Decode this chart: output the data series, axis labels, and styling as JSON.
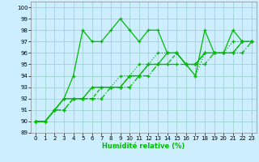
{
  "xlabel": "Humidité relative (%)",
  "background_color": "#cceeff",
  "grid_color": "#99cccc",
  "line_color": "#00bb00",
  "xlim": [
    -0.5,
    23.5
  ],
  "ylim": [
    89,
    100.5
  ],
  "yticks": [
    89,
    90,
    91,
    92,
    93,
    94,
    95,
    96,
    97,
    98,
    99,
    100
  ],
  "xticks": [
    0,
    1,
    2,
    3,
    4,
    5,
    6,
    7,
    8,
    9,
    10,
    11,
    12,
    13,
    14,
    15,
    16,
    17,
    18,
    19,
    20,
    21,
    22,
    23
  ],
  "series": [
    {
      "x": [
        0,
        1,
        2,
        3,
        4,
        5,
        6,
        7,
        8,
        9,
        10,
        11,
        12,
        13,
        14,
        15,
        16,
        17,
        18,
        19,
        20,
        21,
        22
      ],
      "y": [
        90,
        90,
        91,
        92,
        94,
        98,
        97,
        97,
        98,
        99,
        98,
        97,
        98,
        98,
        96,
        96,
        95,
        94,
        98,
        96,
        96,
        98,
        97
      ],
      "style": "-",
      "marker": "+"
    },
    {
      "x": [
        0,
        1,
        2,
        3,
        4,
        5,
        6,
        7,
        8,
        9,
        10,
        11,
        12,
        13,
        14,
        15,
        16,
        17,
        18,
        19,
        20,
        21,
        22,
        23
      ],
      "y": [
        90,
        90,
        91,
        92,
        92,
        92,
        93,
        93,
        93,
        94,
        94,
        95,
        95,
        96,
        96,
        96,
        95,
        94,
        96,
        96,
        96,
        97,
        97,
        97
      ],
      "style": "--",
      "marker": "+"
    },
    {
      "x": [
        0,
        1,
        2,
        3,
        4,
        5,
        6,
        7,
        8,
        9,
        10,
        11,
        12,
        13,
        14,
        15,
        16,
        17,
        18,
        19,
        20,
        21,
        22,
        23
      ],
      "y": [
        90,
        90,
        91,
        92,
        92,
        92,
        93,
        93,
        93,
        93,
        94,
        94,
        95,
        95,
        96,
        96,
        95,
        95,
        96,
        96,
        96,
        96,
        97,
        97
      ],
      "style": "-",
      "marker": "+"
    },
    {
      "x": [
        0,
        1,
        2,
        3,
        4,
        5,
        6,
        7,
        8,
        9,
        10,
        11,
        12,
        13,
        14,
        15,
        16,
        17,
        18,
        19,
        20,
        21,
        22,
        23
      ],
      "y": [
        90,
        90,
        91,
        91,
        92,
        92,
        92,
        93,
        93,
        93,
        94,
        94,
        95,
        95,
        95,
        96,
        95,
        95,
        96,
        96,
        96,
        96,
        97,
        97
      ],
      "style": "-",
      "marker": "+"
    },
    {
      "x": [
        0,
        1,
        2,
        3,
        4,
        5,
        6,
        7,
        8,
        9,
        10,
        11,
        12,
        13,
        14,
        15,
        16,
        17,
        18,
        19,
        20,
        21,
        22,
        23
      ],
      "y": [
        90,
        90,
        91,
        91,
        92,
        92,
        92,
        92,
        93,
        93,
        93,
        94,
        94,
        95,
        95,
        95,
        95,
        95,
        95,
        96,
        96,
        96,
        96,
        97
      ],
      "style": "-",
      "marker": "+"
    }
  ]
}
